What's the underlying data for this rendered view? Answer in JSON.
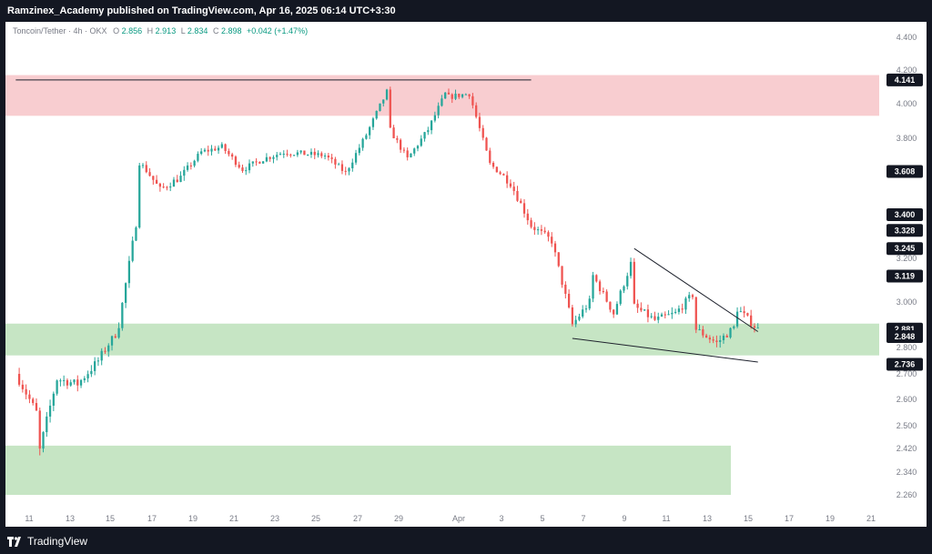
{
  "header": {
    "publisher_line": "Ramzinex_Academy published on TradingView.com, Apr 16, 2025 06:14 UTC+3:30"
  },
  "footer": {
    "brand": "TradingView",
    "logo_icon": "tradingview-logo-icon"
  },
  "legend": {
    "symbol": "Toncoin/Tether · 4h · OKX",
    "o_label": "O",
    "o_value": "2.856",
    "h_label": "H",
    "h_value": "2.913",
    "l_label": "L",
    "l_value": "2.834",
    "c_label": "C",
    "c_value": "2.898",
    "change": "+0.042 (+1.47%)"
  },
  "colors": {
    "up": "#26a69a",
    "down": "#ef5350",
    "resistance_zone": "#f8cdd0",
    "support_zone": "#c6e5c4",
    "axis_text": "#787b86",
    "badge_bg": "#131722"
  },
  "chart_data": {
    "type": "candlestick",
    "title": "",
    "timeframe": "4h",
    "ylim": [
      2.2,
      4.48
    ],
    "y_ticks": [
      "4.400",
      "4.200",
      "4.000",
      "3.800",
      "3.600",
      "3.400",
      "3.200",
      "3.000",
      "2.800",
      "2.700",
      "2.600",
      "2.500",
      "2.420",
      "2.340",
      "2.260"
    ],
    "y_tick_values": [
      4.4,
      4.2,
      4.0,
      3.8,
      3.6,
      3.4,
      3.2,
      3.0,
      2.8,
      2.7,
      2.6,
      2.5,
      2.42,
      2.34,
      2.26
    ],
    "x_ticks": [
      "11",
      "13",
      "15",
      "17",
      "19",
      "21",
      "23",
      "25",
      "27",
      "29",
      "Apr",
      "3",
      "5",
      "7",
      "9",
      "11",
      "13",
      "15",
      "17",
      "19",
      "21"
    ],
    "price_badges": [
      "4.141",
      "3.608",
      "3.400",
      "3.328",
      "3.245",
      "3.119",
      "2.881",
      "2.848",
      "2.736"
    ],
    "price_badge_values": [
      4.141,
      3.608,
      3.4,
      3.328,
      3.245,
      3.119,
      2.881,
      2.848,
      2.736
    ],
    "zones": [
      {
        "type": "resistance",
        "from": 3.93,
        "to": 4.17
      },
      {
        "type": "support",
        "from": 2.77,
        "to": 2.905
      },
      {
        "type": "support",
        "from": 2.26,
        "to": 2.43
      }
    ],
    "trendlines": [
      {
        "name": "resistance-level-line",
        "from": [
          "Mar 10",
          4.141
        ],
        "to": [
          "Apr 5",
          4.141
        ]
      },
      {
        "name": "wedge-upper-line",
        "from": [
          "Apr 10",
          3.245
        ],
        "to": [
          "Apr 16",
          2.87
        ]
      },
      {
        "name": "wedge-lower-line",
        "from": [
          "Apr 7",
          2.84
        ],
        "to": [
          "Apr 16",
          2.745
        ]
      }
    ],
    "anchors": [
      [
        "Mar 10",
        2.7
      ],
      [
        "Mar 11",
        2.55
      ],
      [
        "Mar 11",
        2.36
      ],
      [
        "Mar 12",
        2.68
      ],
      [
        "Mar 13",
        2.66
      ],
      [
        "Mar 14",
        2.75
      ],
      [
        "Mar 15",
        2.88
      ],
      [
        "Mar 15",
        2.9
      ],
      [
        "Mar 16",
        3.45
      ],
      [
        "Mar 16",
        3.66
      ],
      [
        "Mar 17",
        3.52
      ],
      [
        "Mar 18",
        3.58
      ],
      [
        "Mar 19",
        3.72
      ],
      [
        "Mar 20",
        3.75
      ],
      [
        "Mar 21",
        3.62
      ],
      [
        "Mar 22",
        3.68
      ],
      [
        "Mar 23",
        3.72
      ],
      [
        "Mar 25",
        3.7
      ],
      [
        "Mar 26",
        3.6
      ],
      [
        "Mar 27",
        3.82
      ],
      [
        "Mar 28",
        4.07
      ],
      [
        "Mar 28",
        3.88
      ],
      [
        "Mar 29",
        3.68
      ],
      [
        "Mar 30",
        3.85
      ],
      [
        "Mar 31",
        4.1
      ],
      [
        "Apr 1",
        4.17
      ],
      [
        "Apr 1",
        4.04
      ],
      [
        "Apr 2",
        4.06
      ],
      [
        "Apr 3",
        3.65
      ],
      [
        "Apr 4",
        3.55
      ],
      [
        "Apr 5",
        3.35
      ],
      [
        "Apr 6",
        3.28
      ],
      [
        "Apr 7",
        2.9
      ],
      [
        "Apr 8",
        3.02
      ],
      [
        "Apr 8",
        3.12
      ],
      [
        "Apr 9",
        2.95
      ],
      [
        "Apr 10",
        3.22
      ],
      [
        "Apr 10",
        2.98
      ],
      [
        "Apr 11",
        2.92
      ],
      [
        "Apr 12",
        2.95
      ],
      [
        "Apr 13",
        3.05
      ],
      [
        "Apr 13",
        2.88
      ],
      [
        "Apr 14",
        2.82
      ],
      [
        "Apr 15",
        2.9
      ],
      [
        "Apr 15",
        2.97
      ],
      [
        "Apr 16",
        2.88
      ]
    ]
  }
}
